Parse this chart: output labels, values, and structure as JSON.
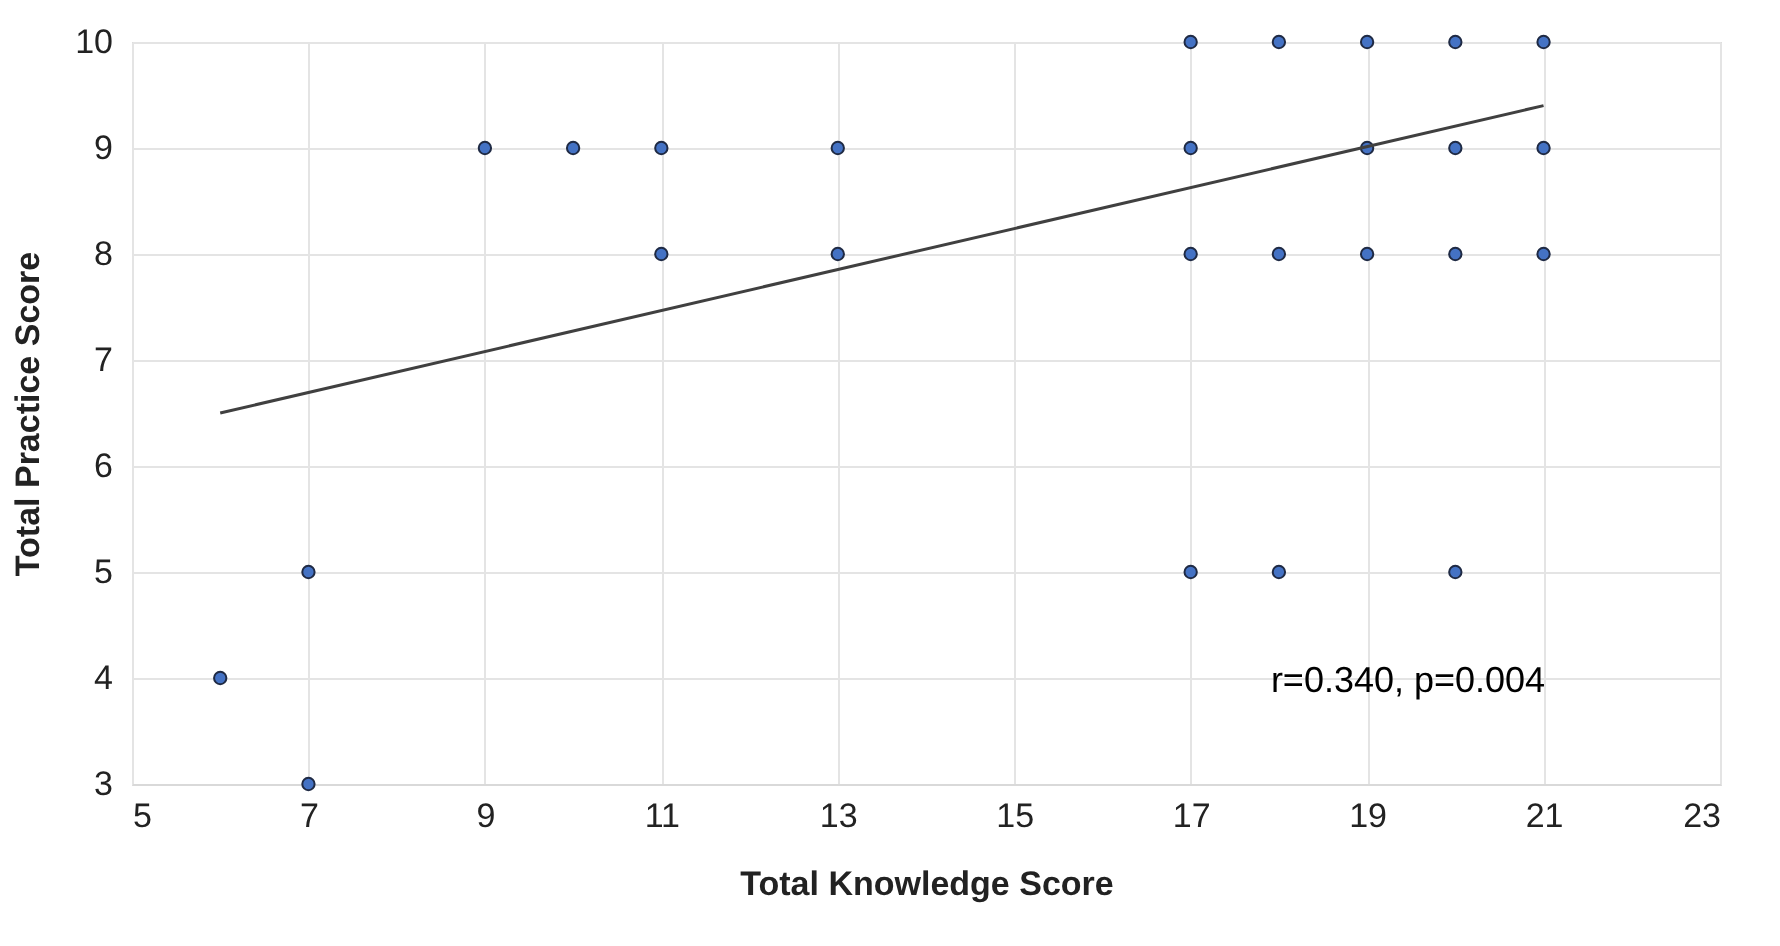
{
  "chart_data": {
    "type": "scatter",
    "xlabel": "Total Knowledge Score",
    "ylabel": "Total Practice Score",
    "xlim": [
      5,
      23
    ],
    "xticks": [
      5,
      7,
      9,
      11,
      13,
      15,
      17,
      19,
      21,
      23
    ],
    "ylim": [
      3,
      10
    ],
    "yticks": [
      3,
      4,
      5,
      6,
      7,
      8,
      9,
      10
    ],
    "grid": true,
    "marker": "circle",
    "series": [
      {
        "color": "#4472c4",
        "x": [
          6,
          7,
          7,
          9,
          10,
          11,
          11,
          13,
          13,
          17,
          18,
          19,
          20,
          21,
          17,
          19,
          20,
          21,
          17,
          18,
          19,
          20,
          21,
          17,
          18,
          20
        ],
        "values": [
          4,
          5,
          3,
          9,
          9,
          9,
          8,
          9,
          8,
          10,
          10,
          10,
          10,
          10,
          9,
          9,
          9,
          9,
          8,
          8,
          8,
          8,
          8,
          5,
          5,
          5
        ]
      },
      {
        "type": "line",
        "marker": "none",
        "color": "#404040",
        "x": [
          6,
          21
        ],
        "values": [
          6.5,
          9.4
        ]
      }
    ],
    "annotations": [
      "r=0.340, p=0.004"
    ]
  }
}
